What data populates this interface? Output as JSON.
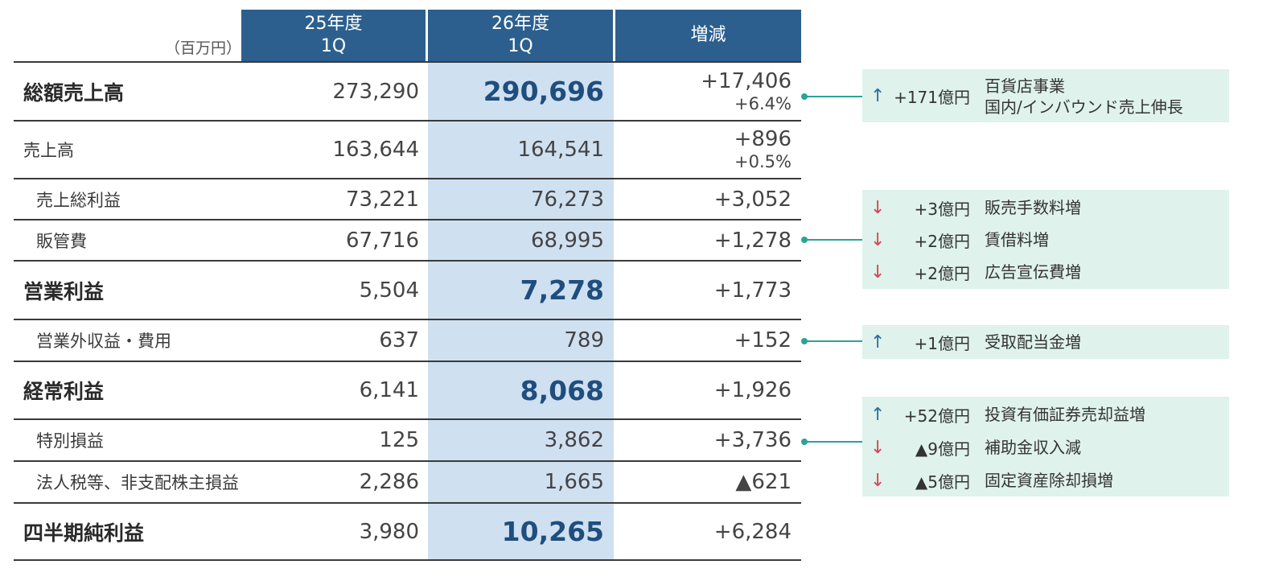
{
  "header": {
    "unit": "（百万円）",
    "col1_line1": "25年度",
    "col1_line2": "1Q",
    "col2_line1": "26年度",
    "col2_line2": "1Q",
    "col3": "増減"
  },
  "rows": [
    {
      "label": "総額売上高",
      "v25": "273,290",
      "v26": "290,696",
      "diff": "+17,406",
      "diff_pct": "+6.4%"
    },
    {
      "label": "売上高",
      "v25": "163,644",
      "v26": "164,541",
      "diff": "+896",
      "diff_pct": "+0.5%"
    },
    {
      "label": "売上総利益",
      "v25": "73,221",
      "v26": "76,273",
      "diff": "+3,052"
    },
    {
      "label": "販管費",
      "v25": "67,716",
      "v26": "68,995",
      "diff": "+1,278"
    },
    {
      "label": "営業利益",
      "v25": "5,504",
      "v26": "7,278",
      "diff": "+1,773"
    },
    {
      "label": "営業外収益・費用",
      "v25": "637",
      "v26": "789",
      "diff": "+152"
    },
    {
      "label": "経常利益",
      "v25": "6,141",
      "v26": "8,068",
      "diff": "+1,926"
    },
    {
      "label": "特別損益",
      "v25": "125",
      "v26": "3,862",
      "diff": "+3,736"
    },
    {
      "label": "法人税等、非支配株主損益",
      "v25": "2,286",
      "v26": "1,665",
      "diff": "▲621"
    },
    {
      "label": "四半期純利益",
      "v25": "3,980",
      "v26": "10,265",
      "diff": "+6,284"
    }
  ],
  "callouts": [
    {
      "items": [
        {
          "arrow": "↑",
          "amount": "+171億円",
          "line1": "百貨店事業",
          "line2": "国内/インバウンド売上伸長"
        }
      ]
    },
    {
      "items": [
        {
          "arrow": "↓",
          "amount": "+3億円",
          "desc": "販売手数料増"
        },
        {
          "arrow": "↓",
          "amount": "+2億円",
          "desc": "賃借料増"
        },
        {
          "arrow": "↓",
          "amount": "+2億円",
          "desc": "広告宣伝費増"
        }
      ]
    },
    {
      "items": [
        {
          "arrow": "↑",
          "amount": "+1億円",
          "desc": "受取配当金増"
        }
      ]
    },
    {
      "items": [
        {
          "arrow": "↑",
          "amount": "+52億円",
          "desc": "投資有価証券売却益増"
        },
        {
          "arrow": "↓",
          "amount": "▲9億円",
          "desc": "補助金収入減"
        },
        {
          "arrow": "↓",
          "amount": "▲5億円",
          "desc": "固定資産除却損増"
        }
      ]
    }
  ],
  "colors": {
    "header_bg": "#2c5f8e",
    "highlight_col": "#cfe0f1",
    "callout_bg": "#dff2ec",
    "connector": "#2aa39a",
    "arrow_up": "#2c6e9c",
    "arrow_down": "#d9424f"
  }
}
